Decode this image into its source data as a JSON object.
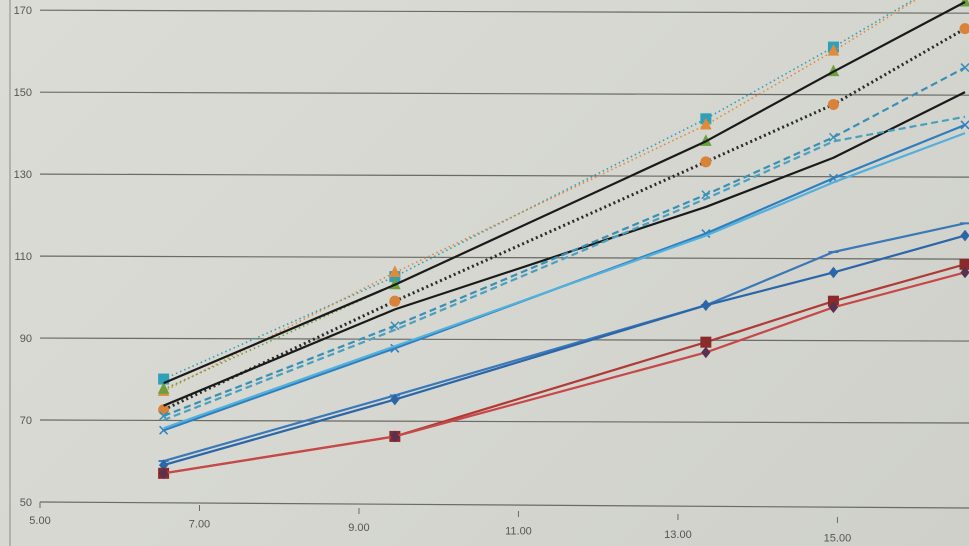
{
  "chart_data": {
    "type": "line",
    "title": "",
    "xlabel": "",
    "ylabel": "",
    "xlim": [
      5,
      16.65
    ],
    "ylim": [
      50,
      172
    ],
    "x_ticks": [
      "5.00",
      "7.00",
      "9.00",
      "11.00",
      "13.00",
      "15.00"
    ],
    "x_tick_values": [
      5,
      7,
      9,
      11,
      13,
      15
    ],
    "y_ticks": [
      "50",
      "70",
      "90",
      "110",
      "130",
      "150",
      "170"
    ],
    "y_tick_values": [
      50,
      70,
      90,
      110,
      130,
      150,
      170
    ],
    "grid": "horizontal",
    "legend": "none",
    "x": [
      6.55,
      9.45,
      13.35,
      14.95,
      16.6
    ],
    "series": [
      {
        "color": "#2fa0b8",
        "dash": "dotted",
        "marker": "square",
        "values": [
          80,
          105,
          143.5,
          161,
          180
        ]
      },
      {
        "color": "#e08a3a",
        "dash": "dotted",
        "marker": "triangle",
        "values": [
          77,
          106,
          142,
          160,
          180
        ]
      },
      {
        "color": "#6aa040",
        "dash": "dotted",
        "marker": "triangle",
        "values": [
          77.5,
          103,
          138,
          155,
          172
        ]
      },
      {
        "color": "#1a1a1a",
        "dash": "solid",
        "marker": "none",
        "values": [
          79,
          103,
          138,
          155,
          172
        ]
      },
      {
        "color": "#2a2a2a",
        "dash": "dotted-heavy",
        "marker": "circle",
        "markerColor": "#d9823a",
        "values": [
          72.5,
          99,
          133,
          147,
          165.5
        ]
      },
      {
        "color": "#1a1a1a",
        "dash": "solid",
        "marker": "none",
        "values": [
          73.5,
          97,
          122,
          134,
          150
        ]
      },
      {
        "color": "#3a8fb5",
        "dash": "dashed",
        "marker": "x",
        "values": [
          71,
          93,
          125,
          139,
          156
        ]
      },
      {
        "color": "#4aa0bf",
        "dash": "dashed",
        "marker": "none",
        "values": [
          70,
          92,
          124,
          138,
          144
        ]
      },
      {
        "color": "#2f7fbf",
        "dash": "solid",
        "marker": "x",
        "values": [
          67.5,
          87.5,
          115.5,
          129,
          142
        ]
      },
      {
        "color": "#52b0dc",
        "dash": "solid",
        "marker": "none",
        "values": [
          68,
          88,
          115,
          128,
          140
        ]
      },
      {
        "color": "#3a78b8",
        "dash": "solid",
        "marker": "dash",
        "values": [
          60,
          76,
          98,
          111,
          118
        ]
      },
      {
        "color": "#2a66a8",
        "dash": "solid",
        "marker": "diamond",
        "values": [
          59,
          75,
          98,
          106,
          115
        ]
      },
      {
        "color": "#b03a36",
        "dash": "solid",
        "marker": "square",
        "markerColor": "#8a2a2a",
        "values": [
          57,
          66,
          89,
          99,
          108
        ]
      },
      {
        "color": "#c84848",
        "dash": "solid",
        "marker": "diamond",
        "markerColor": "#5a3050",
        "values": [
          57,
          66,
          86.5,
          97.5,
          106
        ]
      }
    ]
  }
}
